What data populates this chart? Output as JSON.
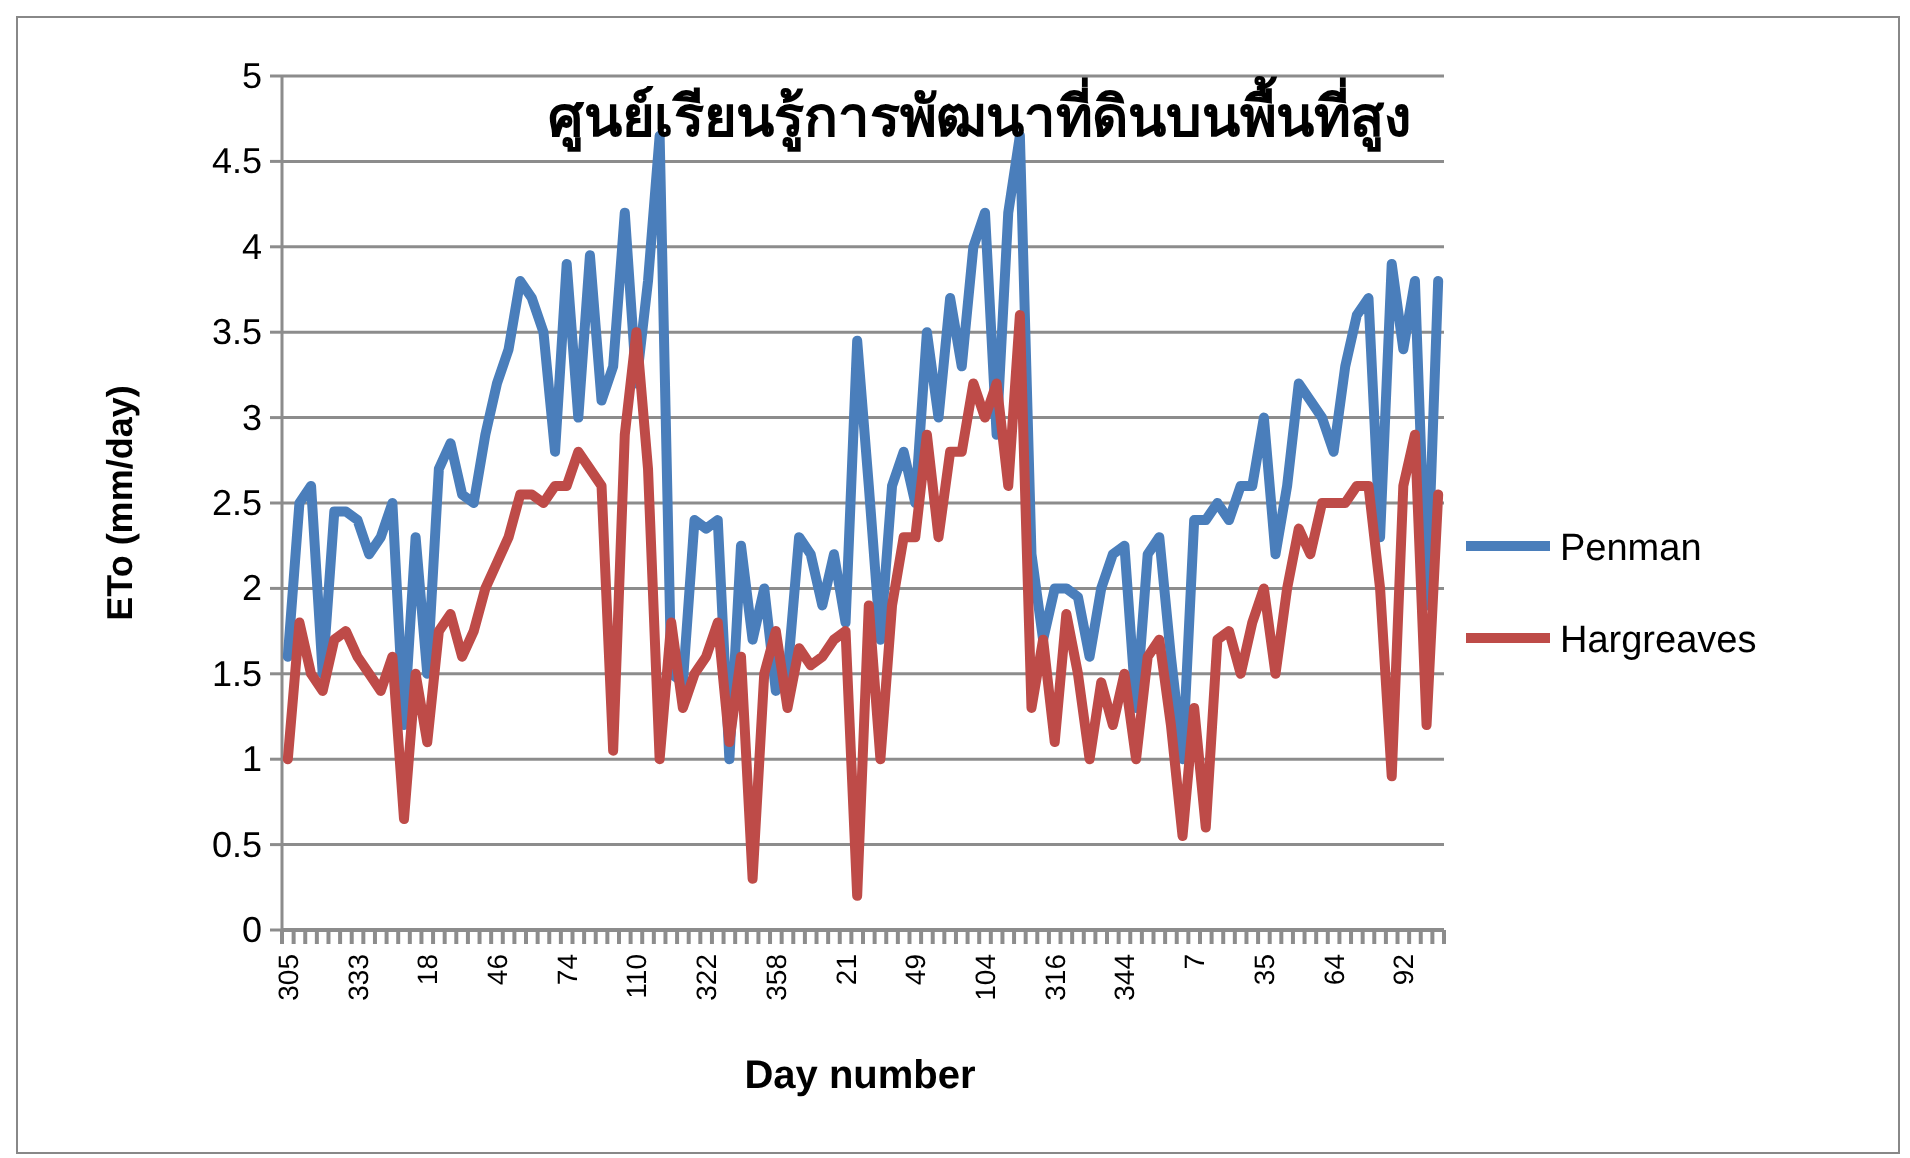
{
  "chart_data": {
    "type": "line",
    "title": "ศูนย์เรียนรู้การพัฒนาที่ดินบนพื้นที่สูง",
    "xlabel": "Day number",
    "ylabel": "ETo (mm/day)",
    "categories": [
      "305",
      null,
      null,
      null,
      null,
      null,
      "333",
      null,
      null,
      null,
      null,
      null,
      "18",
      null,
      null,
      null,
      null,
      null,
      "46",
      null,
      null,
      null,
      null,
      null,
      "74",
      null,
      null,
      null,
      null,
      null,
      "110",
      null,
      null,
      null,
      null,
      null,
      "322",
      null,
      null,
      null,
      null,
      null,
      "358",
      null,
      null,
      null,
      null,
      null,
      "21",
      null,
      null,
      null,
      null,
      null,
      "49",
      null,
      null,
      null,
      null,
      null,
      "104",
      null,
      null,
      null,
      null,
      null,
      "316",
      null,
      null,
      null,
      null,
      null,
      "344",
      null,
      null,
      null,
      null,
      null,
      "7",
      null,
      null,
      null,
      null,
      null,
      "35",
      null,
      null,
      null,
      null,
      null,
      "64",
      null,
      null,
      null,
      null,
      null,
      "92",
      null,
      null,
      null
    ],
    "series": [
      {
        "name": "Penman",
        "color": "#4a7ebb",
        "values": [
          1.6,
          2.5,
          2.6,
          1.5,
          2.45,
          2.45,
          2.4,
          2.2,
          2.3,
          2.5,
          1.2,
          2.3,
          1.5,
          2.7,
          2.85,
          2.55,
          2.5,
          2.9,
          3.2,
          3.4,
          3.8,
          3.7,
          3.5,
          2.8,
          3.9,
          3.0,
          3.95,
          3.1,
          3.3,
          4.2,
          3.2,
          3.8,
          4.65,
          1.5,
          1.45,
          2.4,
          2.35,
          2.4,
          1.0,
          2.25,
          1.7,
          2.0,
          1.4,
          1.5,
          2.3,
          2.2,
          1.9,
          2.2,
          1.8,
          3.45,
          2.6,
          1.7,
          2.6,
          2.8,
          2.5,
          3.5,
          3.0,
          3.7,
          3.3,
          4.0,
          4.2,
          2.9,
          4.2,
          4.65,
          2.2,
          1.7,
          2.0,
          2.0,
          1.95,
          1.6,
          2.0,
          2.2,
          2.25,
          1.3,
          2.2,
          2.3,
          1.6,
          1.0,
          2.4,
          2.4,
          2.5,
          2.4,
          2.6,
          2.6,
          3.0,
          2.2,
          2.6,
          3.2,
          3.1,
          3.0,
          2.8,
          3.3,
          3.6,
          3.7,
          2.3,
          3.9,
          3.4,
          3.8,
          1.9,
          3.8
        ]
      },
      {
        "name": "Hargreaves",
        "color": "#be4b48",
        "values": [
          1.0,
          1.8,
          1.5,
          1.4,
          1.7,
          1.75,
          1.6,
          1.5,
          1.4,
          1.6,
          0.65,
          1.5,
          1.1,
          1.75,
          1.85,
          1.6,
          1.75,
          2.0,
          2.15,
          2.3,
          2.55,
          2.55,
          2.5,
          2.6,
          2.6,
          2.8,
          2.7,
          2.6,
          1.05,
          2.9,
          3.5,
          2.7,
          1.0,
          1.8,
          1.3,
          1.5,
          1.6,
          1.8,
          1.1,
          1.6,
          0.3,
          1.5,
          1.75,
          1.3,
          1.65,
          1.55,
          1.6,
          1.7,
          1.75,
          0.2,
          1.9,
          1.0,
          1.9,
          2.3,
          2.3,
          2.9,
          2.3,
          2.8,
          2.8,
          3.2,
          3.0,
          3.2,
          2.6,
          3.6,
          1.3,
          1.7,
          1.1,
          1.85,
          1.5,
          1.0,
          1.45,
          1.2,
          1.5,
          1.0,
          1.6,
          1.7,
          1.2,
          0.55,
          1.3,
          0.6,
          1.7,
          1.75,
          1.5,
          1.8,
          2.0,
          1.5,
          2.0,
          2.35,
          2.2,
          2.5,
          2.5,
          2.5,
          2.6,
          2.6,
          2.0,
          0.9,
          2.6,
          2.9,
          1.2,
          2.55
        ]
      }
    ],
    "ylim": [
      0,
      5
    ],
    "yticks": [
      0,
      0.5,
      1,
      1.5,
      2,
      2.5,
      3,
      3.5,
      4,
      4.5,
      5
    ],
    "grid": "y",
    "legend": "right",
    "line_style": "solid"
  }
}
